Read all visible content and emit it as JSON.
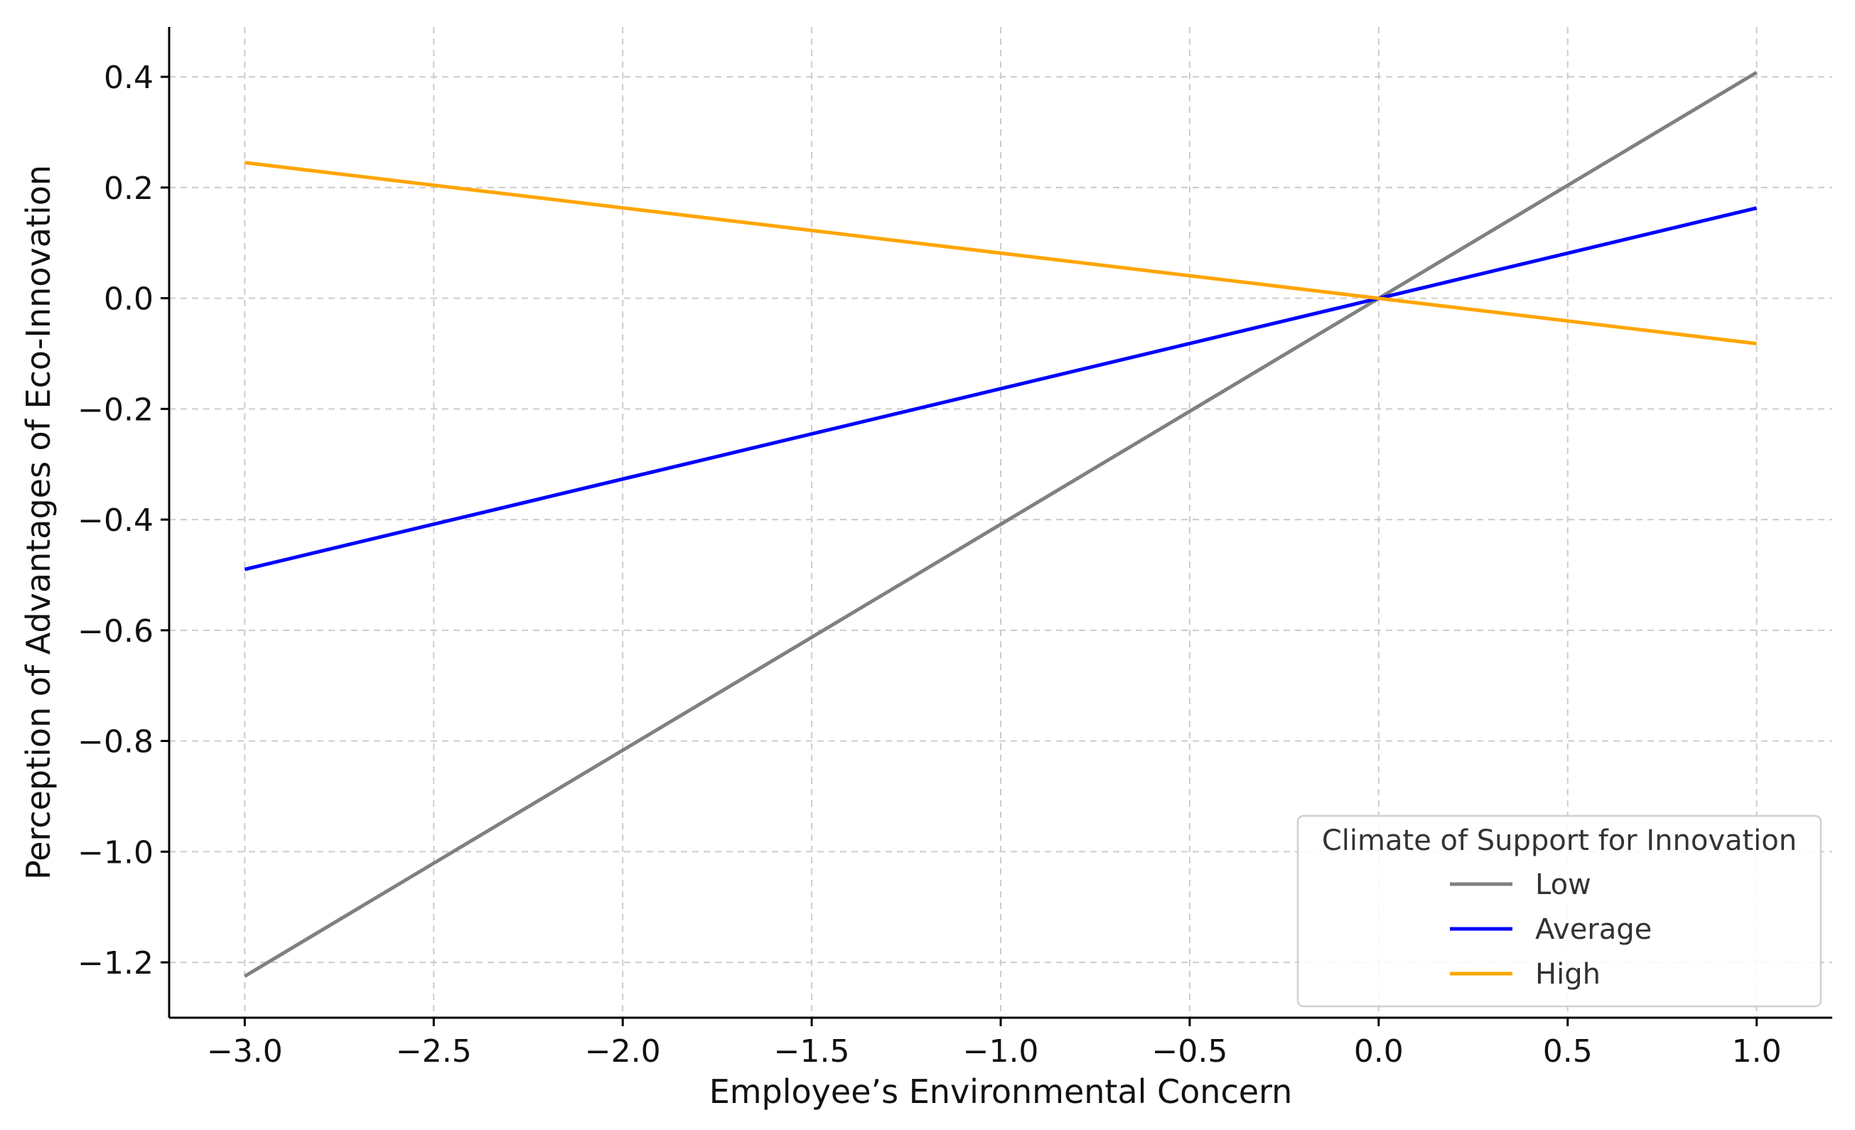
{
  "chart_data": {
    "type": "line",
    "title": "",
    "xlabel": "Employee’s Environmental Concern",
    "ylabel": "Perception of Advantages of Eco-Innovation",
    "xlim": [
      -3.2,
      1.2
    ],
    "ylim": [
      -1.3,
      0.49
    ],
    "x_ticks": [
      -3.0,
      -2.5,
      -2.0,
      -1.5,
      -1.0,
      -0.5,
      0.0,
      0.5,
      1.0
    ],
    "x_tick_labels": [
      "−3.0",
      "−2.5",
      "−2.0",
      "−1.5",
      "−1.0",
      "−0.5",
      "0.0",
      "0.5",
      "1.0"
    ],
    "y_ticks": [
      0.4,
      0.2,
      0.0,
      -0.2,
      -0.4,
      -0.6,
      -0.8,
      -1.0,
      -1.2
    ],
    "y_tick_labels": [
      "0.4",
      "0.2",
      "0.0",
      "−0.2",
      "−0.4",
      "−0.6",
      "−0.8",
      "−1.0",
      "−1.2"
    ],
    "grid": true,
    "legend": {
      "title": "Climate of Support for Innovation",
      "placement": "lower-right"
    },
    "series": [
      {
        "name": "Low",
        "color": "#808080",
        "x": [
          -3.0,
          1.0
        ],
        "y": [
          -1.225,
          0.408
        ]
      },
      {
        "name": "Average",
        "color": "#0000ff",
        "x": [
          -3.0,
          1.0
        ],
        "y": [
          -0.49,
          0.163
        ]
      },
      {
        "name": "High",
        "color": "#ffa500",
        "x": [
          -3.0,
          1.0
        ],
        "y": [
          0.245,
          -0.082
        ]
      }
    ]
  }
}
